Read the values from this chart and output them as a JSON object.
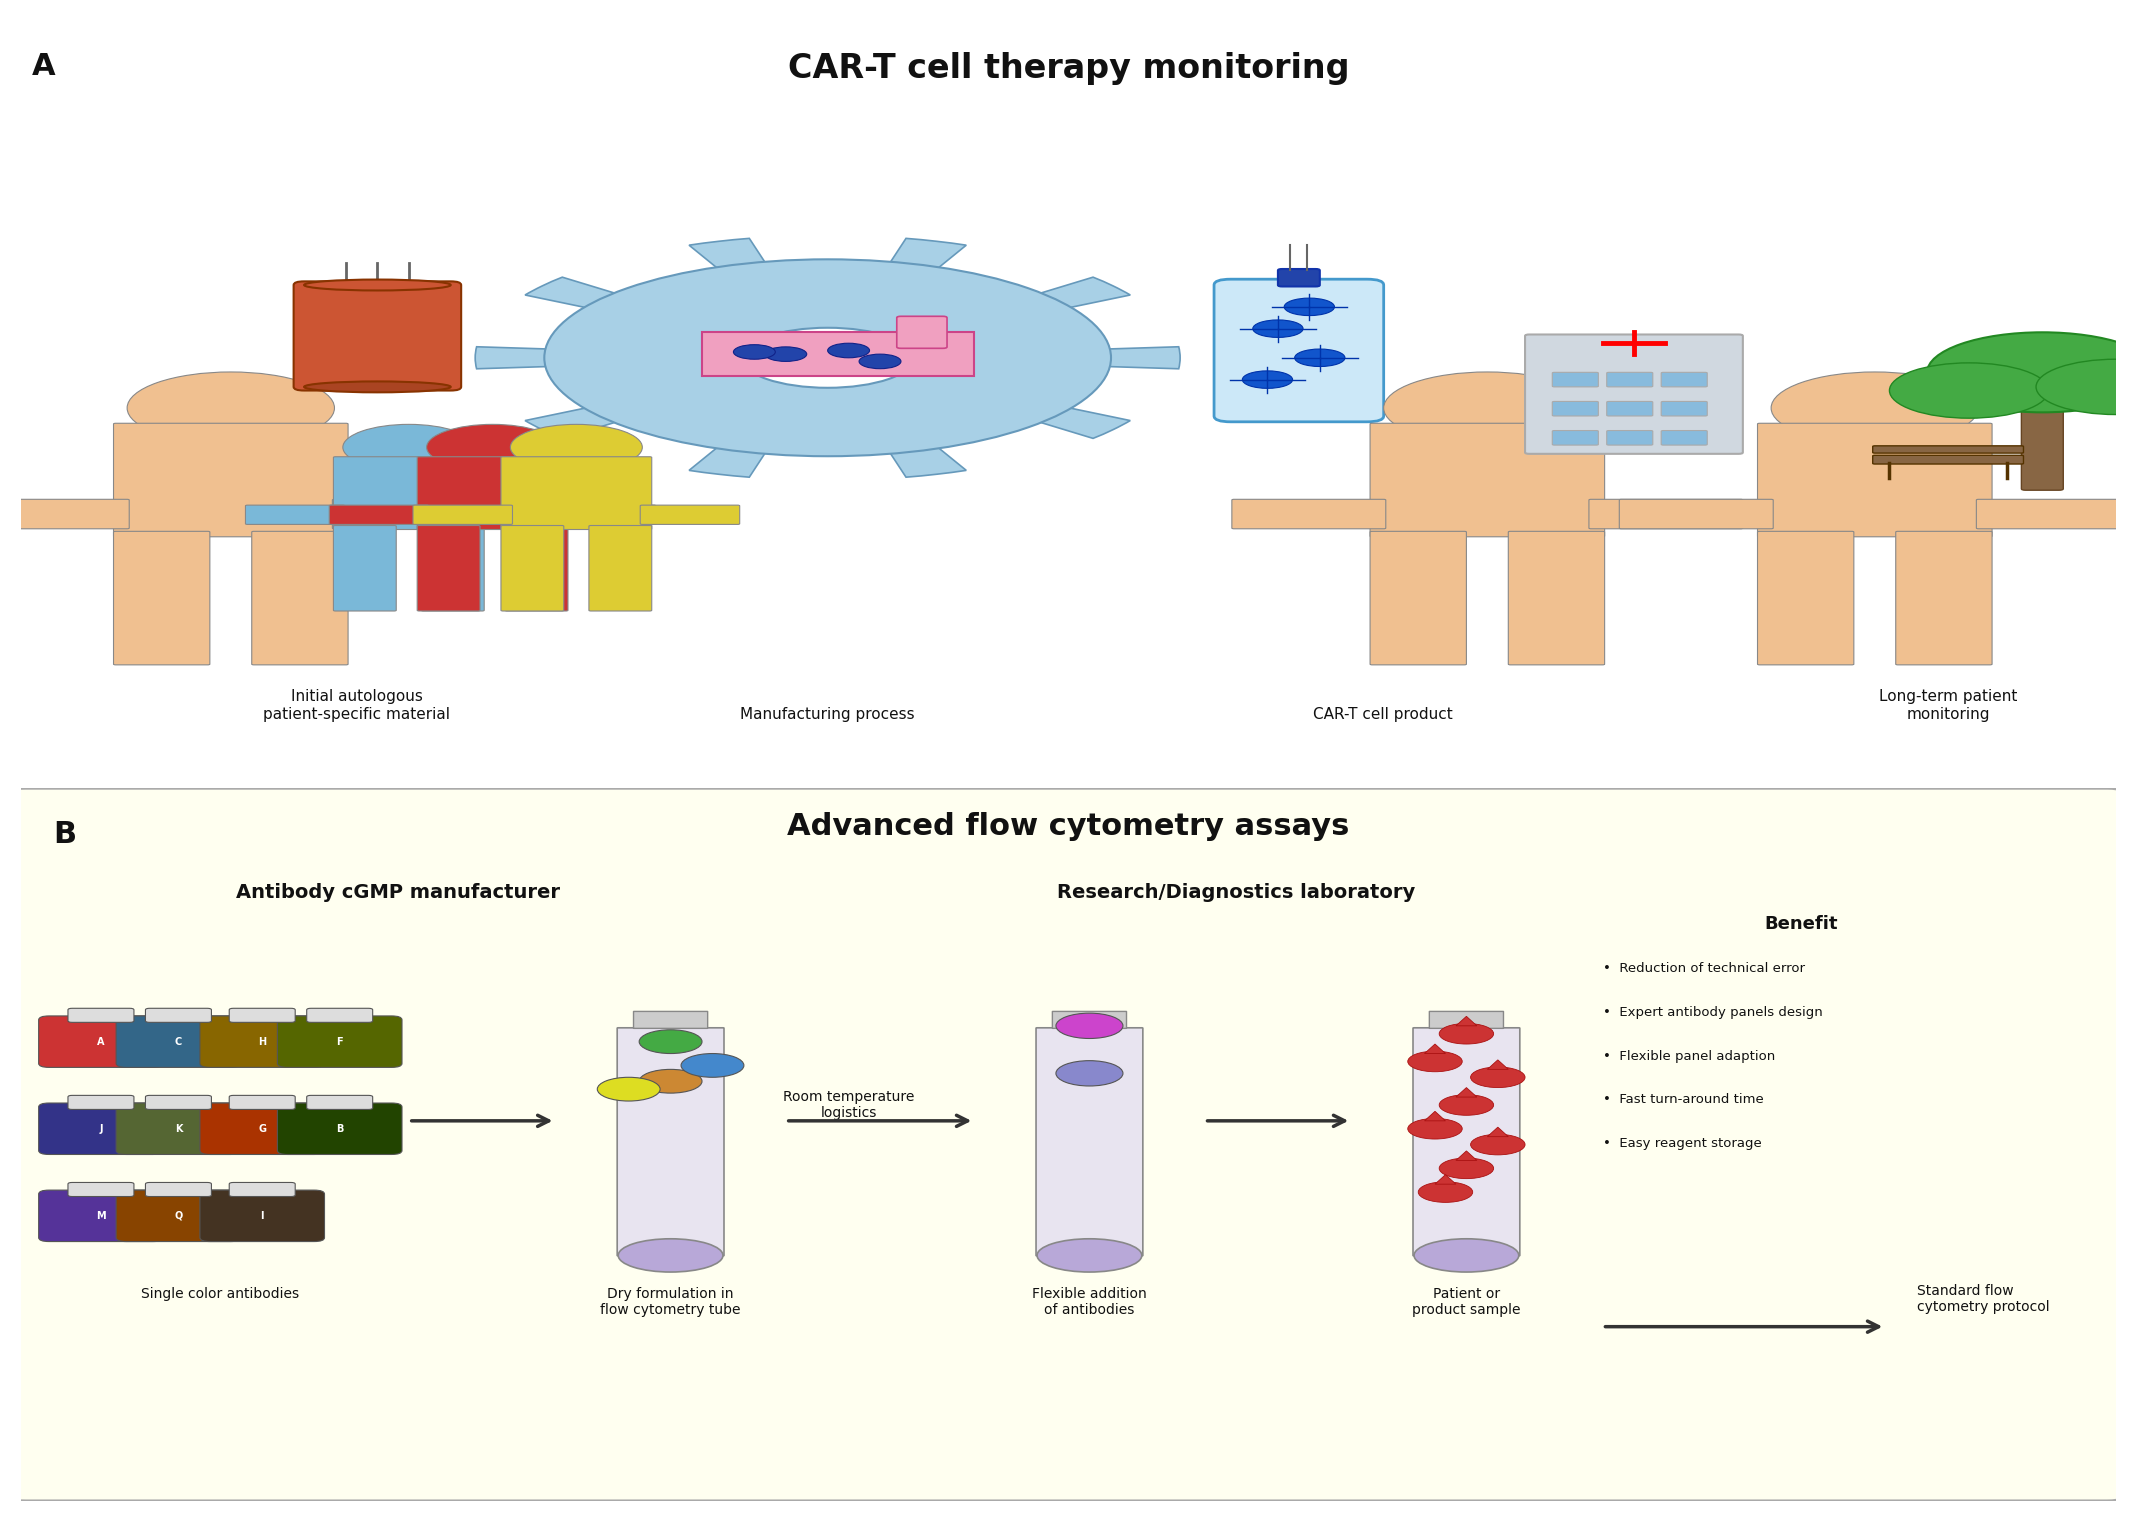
{
  "title_A": "CAR-T cell therapy monitoring",
  "title_B": "Advanced flow cytometry assays",
  "label_A": "A",
  "label_B": "B",
  "panel_A_labels": [
    "Initial autologous\npatient-specific material",
    "Manufacturing process",
    "CAR-T cell product",
    "Long-term patient\nmonitoring"
  ],
  "panel_B_left_title": "Antibody cGMP manufacturer",
  "panel_B_right_title": "Research/Diagnostics laboratory",
  "panel_B_labels": [
    "Single color antibodies",
    "Dry formulation in\nflow cytometry tube",
    "Flexible addition\nof antibodies",
    "Patient or\nproduct sample"
  ],
  "logistics_text": "Room temperature\nlogistics",
  "benefit_title": "Benefit",
  "benefit_bullets": [
    "Reduction of technical error",
    "Expert antibody panels design",
    "Flexible panel adaption",
    "Fast turn-around time",
    "Easy reagent storage"
  ],
  "standard_protocol_text": "Standard flow\ncytometry protocol",
  "bg_color_A": "#ffffff",
  "bg_color_B": "#fffff0",
  "border_color": "#cccccc",
  "body_color": "#f0c090",
  "body_outline": "#888888",
  "gear_color": "#a8d0e6",
  "gear_outline": "#6699bb",
  "bioreactor_color": "#cc5533",
  "flask_color": "#4499cc",
  "building_color": "#d0d8e0",
  "building_accent": "#88bbdd",
  "tree_color": "#44aa44",
  "bench_color": "#886644",
  "bottle_colors": [
    "#cc3333",
    "#888833",
    "#336688",
    "#886600",
    "#338833",
    "#cc6600",
    "#553399",
    "#cc4400",
    "#886655"
  ],
  "bottle_labels": [
    "A",
    "C",
    "H",
    "F",
    "J",
    "K",
    "M",
    "G",
    "B",
    "Q",
    "I"
  ],
  "tube_color": "#e8e4f0",
  "tube_bottom": "#b8a8d8",
  "dot_colors_dry": [
    "#44aa44",
    "#cc8833",
    "#4488cc",
    "#dddd22"
  ],
  "dot_colors_flex": [
    "#cc44cc",
    "#8888cc"
  ],
  "drop_color": "#cc3333",
  "arrow_color": "#333333",
  "text_color": "#111111",
  "font_family": "DejaVu Sans"
}
